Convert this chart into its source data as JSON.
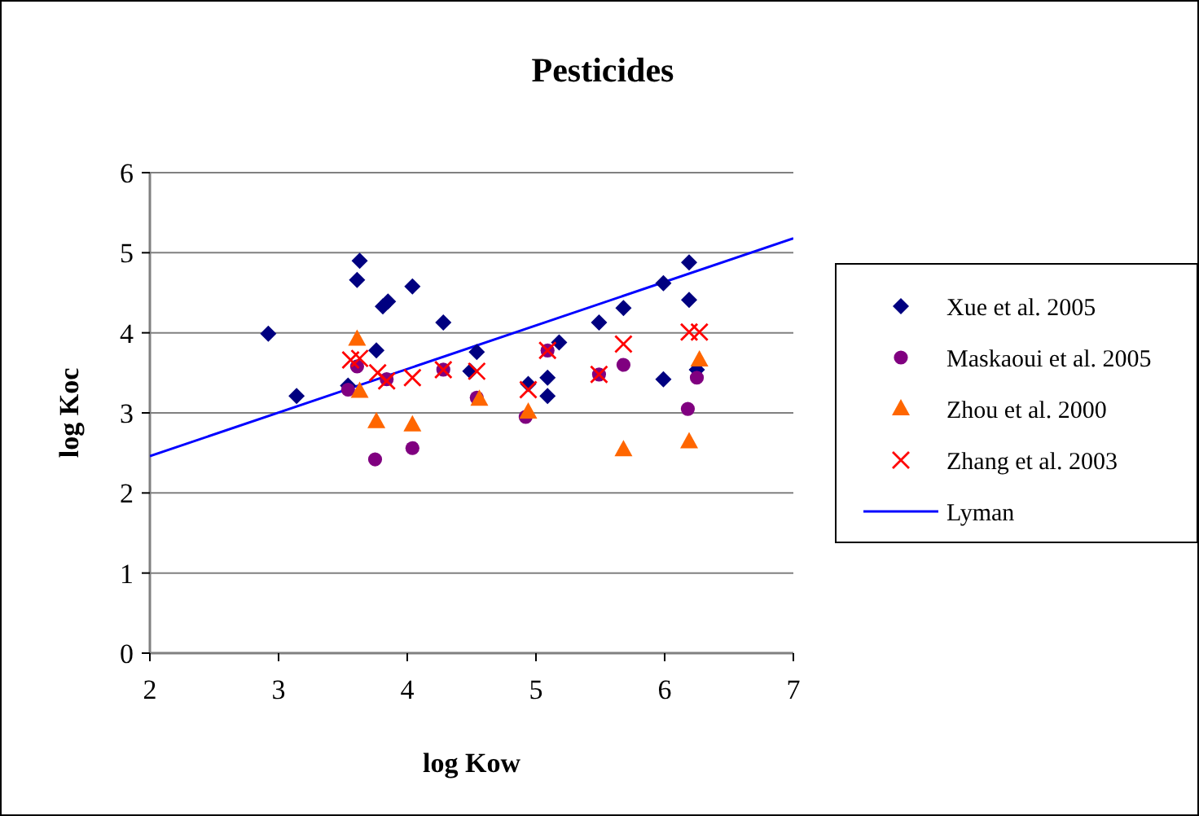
{
  "chart_data": {
    "type": "scatter",
    "title": "Pesticides",
    "xlabel": "log Kow",
    "ylabel": "log Koc",
    "xlim": [
      2,
      7
    ],
    "xticks": [
      2,
      3,
      4,
      5,
      6,
      7
    ],
    "ylim": [
      0,
      6
    ],
    "yticks": [
      0,
      1,
      2,
      3,
      4,
      5,
      6
    ],
    "grid": "y",
    "legend": "right",
    "series": [
      {
        "name": "Xue et al. 2005",
        "color": "#000080",
        "marker": "diamond",
        "x": [
          2.92,
          3.14,
          3.63,
          3.61,
          3.54,
          3.76,
          3.81,
          3.85,
          4.04,
          4.28,
          4.54,
          4.49,
          4.94,
          5.09,
          5.09,
          5.18,
          5.49,
          5.68,
          5.99,
          6.19,
          6.19,
          5.99,
          6.25
        ],
        "values": [
          3.99,
          3.21,
          4.9,
          4.66,
          3.34,
          3.78,
          4.33,
          4.39,
          4.58,
          4.13,
          3.76,
          3.52,
          3.36,
          3.44,
          3.21,
          3.88,
          4.13,
          4.31,
          4.62,
          4.88,
          4.41,
          3.42,
          3.54
        ]
      },
      {
        "name": "Maskaoui et al. 2005",
        "color": "#800080",
        "marker": "circle",
        "x": [
          3.61,
          3.54,
          3.75,
          4.04,
          3.84,
          4.28,
          4.54,
          4.92,
          5.09,
          5.49,
          5.68,
          6.18,
          6.25
        ],
        "values": [
          3.58,
          3.29,
          2.42,
          2.56,
          3.42,
          3.54,
          3.19,
          2.95,
          3.78,
          3.48,
          3.6,
          3.05,
          3.44
        ]
      },
      {
        "name": "Zhou et al. 2000",
        "color": "#ff6600",
        "marker": "triangle",
        "x": [
          3.61,
          3.63,
          3.76,
          4.04,
          4.56,
          4.94,
          5.68,
          6.19,
          6.27
        ],
        "values": [
          3.92,
          3.27,
          2.89,
          2.85,
          3.17,
          3.01,
          2.54,
          2.64,
          3.66
        ]
      },
      {
        "name": "Zhang et al. 2003",
        "color": "#ff0000",
        "marker": "cross",
        "x": [
          3.56,
          3.63,
          3.77,
          3.84,
          4.04,
          4.28,
          4.54,
          4.94,
          5.09,
          5.49,
          5.68,
          6.19,
          6.27
        ],
        "values": [
          3.66,
          3.68,
          3.5,
          3.4,
          3.44,
          3.54,
          3.52,
          3.29,
          3.78,
          3.48,
          3.86,
          4.01,
          4.01
        ]
      },
      {
        "name": "Lyman",
        "type": "line",
        "color": "#0000ff",
        "marker": "none",
        "x": [
          2,
          7
        ],
        "values": [
          2.46,
          5.18
        ]
      }
    ]
  }
}
